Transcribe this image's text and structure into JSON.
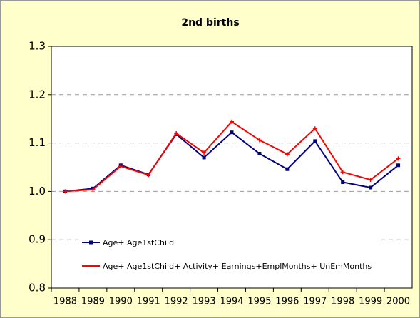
{
  "chart_data": {
    "type": "line",
    "title": "2nd births",
    "categories": [
      "1988",
      "1989",
      "1990",
      "1991",
      "1992",
      "1993",
      "1994",
      "1995",
      "1996",
      "1997",
      "1998",
      "1999",
      "2000"
    ],
    "series": [
      {
        "name": "Age+ Age1stChild",
        "color": "#000080",
        "marker": "square",
        "values": [
          1.0,
          1.006,
          1.054,
          1.035,
          1.118,
          1.07,
          1.122,
          1.078,
          1.046,
          1.104,
          1.019,
          1.008,
          1.054
        ]
      },
      {
        "name": "Age+ Age1stChild+ Activity+ Earnings+EmplMonths+ UnEmMonths",
        "color": "#ff0000",
        "marker": "plus",
        "values": [
          1.0,
          1.004,
          1.052,
          1.034,
          1.12,
          1.08,
          1.144,
          1.106,
          1.077,
          1.13,
          1.04,
          1.024,
          1.068
        ]
      }
    ],
    "ylim": [
      0.8,
      1.3
    ],
    "yticks": [
      0.8,
      0.9,
      {
        "value": 1,
        "label": "1.0"
      },
      1.1,
      1.2,
      1.3
    ],
    "grid": true,
    "legend": "lower-left"
  }
}
